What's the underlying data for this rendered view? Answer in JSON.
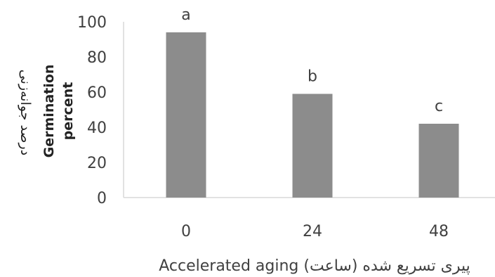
{
  "chart_data": {
    "type": "bar",
    "categories": [
      "0",
      "24",
      "48"
    ],
    "values": [
      94,
      59,
      42
    ],
    "significance_letters": [
      "a",
      "b",
      "c"
    ],
    "xlabel": "Accelerated aging (ساعت) پیری تسریع شده",
    "ylabel_fa": "درصد جوانه‌زنی",
    "ylabel_en": [
      "Germination",
      "percent"
    ],
    "yticks": [
      0,
      20,
      40,
      60,
      80,
      100
    ],
    "ylim": [
      0,
      100
    ],
    "grid": false,
    "legend": "none",
    "bar_color": "#8c8c8c",
    "axis_color": "#d9d9d9"
  }
}
